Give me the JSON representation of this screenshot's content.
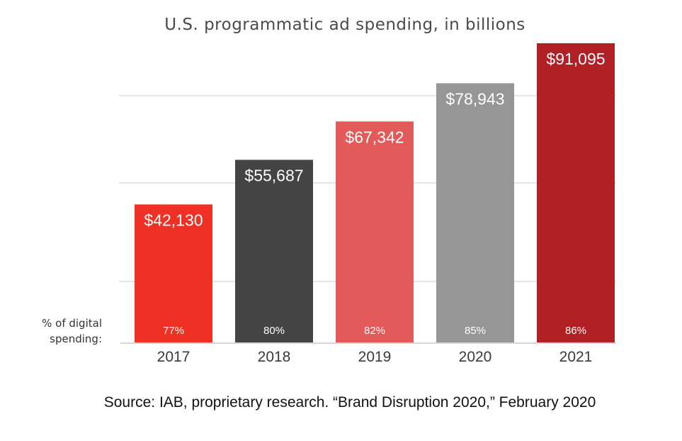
{
  "chart_data": {
    "type": "bar",
    "title": "U.S. programmatic ad spending, in billions",
    "categories": [
      "2017",
      "2018",
      "2019",
      "2020",
      "2021"
    ],
    "values": [
      42130,
      55687,
      67342,
      78943,
      91095
    ],
    "value_labels": [
      "$42,130",
      "$55,687",
      "$67,342",
      "$78,943",
      "$91,095"
    ],
    "pct_digital": [
      "77%",
      "80%",
      "82%",
      "85%",
      "86%"
    ],
    "pct_label_line1": "% of digital",
    "pct_label_line2": "spending:",
    "colors": [
      "#ee3124",
      "#444444",
      "#e35a5a",
      "#969696",
      "#b02025"
    ],
    "ylim": [
      0,
      91095
    ],
    "grid": true,
    "xlabel": "",
    "ylabel": ""
  },
  "source": "Source: IAB, proprietary research. “Brand Disruption 2020,” February 2020"
}
